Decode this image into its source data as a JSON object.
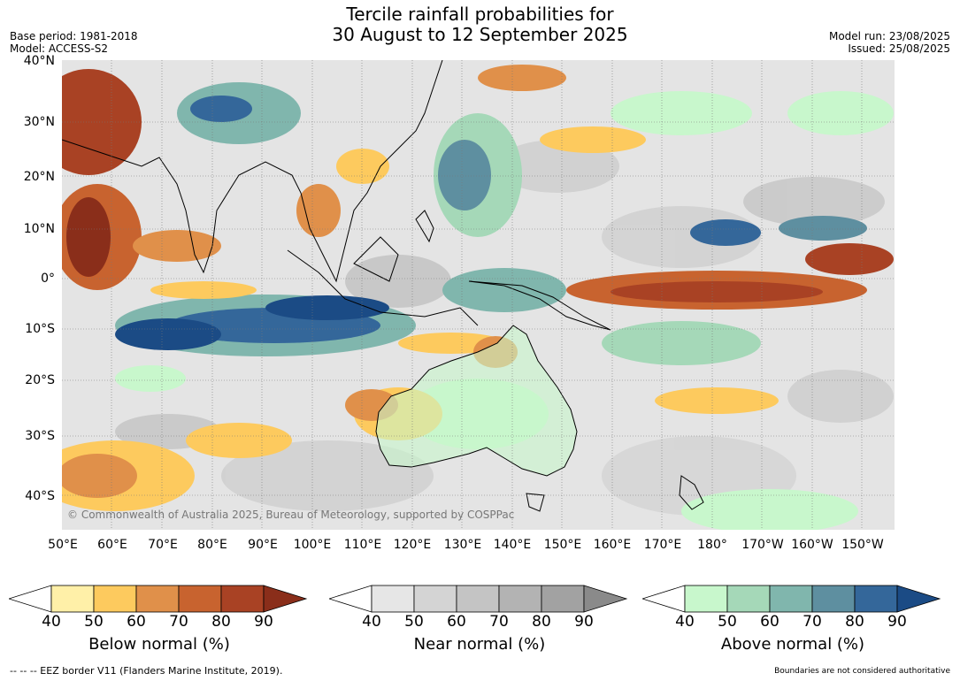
{
  "title": {
    "line1": "Tercile rainfall probabilities for",
    "line2": "30 August to 12 September 2025"
  },
  "meta": {
    "base_period": "Base period: 1981-2018",
    "model": "Model: ACCESS-S2",
    "model_run": "Model run: 23/08/2025",
    "issued": "Issued: 25/08/2025"
  },
  "map": {
    "copyright": "© Commonwealth of Australia 2025, Bureau of Meteorology, supported by COSPPac",
    "lat_labels": [
      "40°N",
      "30°N",
      "20°N",
      "10°N",
      "0°",
      "10°S",
      "20°S",
      "30°S",
      "40°S"
    ],
    "lon_labels": [
      "50°E",
      "60°E",
      "70°E",
      "80°E",
      "90°E",
      "100°E",
      "110°E",
      "120°E",
      "130°E",
      "140°E",
      "150°E",
      "160°E",
      "170°E",
      "180°",
      "170°W",
      "160°W",
      "150°W"
    ]
  },
  "colorbars": [
    {
      "label": "Below normal (%)",
      "ticks": [
        "40",
        "50",
        "60",
        "70",
        "80",
        "90"
      ],
      "colors": [
        "#fff0a8",
        "#fdca5e",
        "#e0904a",
        "#c8632f",
        "#a94224",
        "#8a2e1a"
      ]
    },
    {
      "label": "Near normal (%)",
      "ticks": [
        "40",
        "50",
        "60",
        "70",
        "80",
        "90"
      ],
      "colors": [
        "#e6e6e6",
        "#d4d4d4",
        "#c4c4c4",
        "#b3b3b3",
        "#a2a2a2",
        "#8a8a8a"
      ]
    },
    {
      "label": "Above normal (%)",
      "ticks": [
        "40",
        "50",
        "60",
        "70",
        "80",
        "90"
      ],
      "colors": [
        "#c8f7cc",
        "#a5d8b8",
        "#80b6ad",
        "#5e8fa0",
        "#34679a",
        "#1b4b85"
      ]
    }
  ],
  "footer": {
    "left": "--  --  -- EEZ border V11 (Flanders Marine Institute, 2019).",
    "right": "Boundaries are not considered authoritative"
  }
}
